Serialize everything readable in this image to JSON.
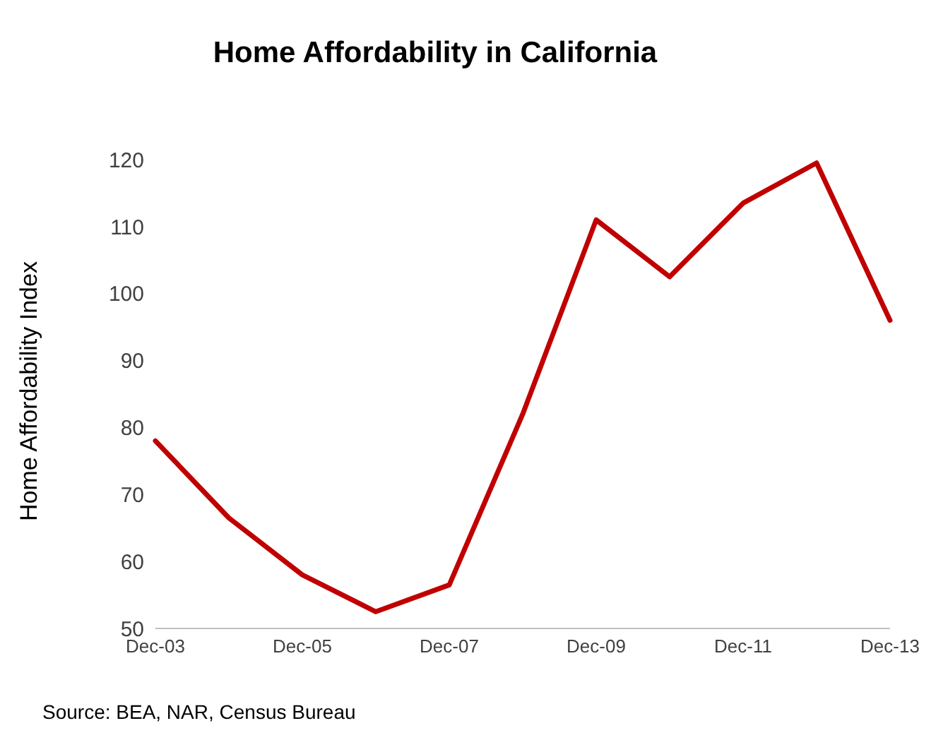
{
  "chart_data": {
    "type": "line",
    "title": "Home Affordability in California",
    "ylabel": "Home Affordability Index",
    "categories": [
      "Dec-03",
      null,
      "Dec-05",
      null,
      "Dec-07",
      null,
      "Dec-09",
      null,
      "Dec-11",
      null,
      "Dec-13"
    ],
    "series": [
      {
        "color": "#c00000",
        "values": [
          78,
          66.5,
          58,
          52.5,
          56.5,
          82,
          111,
          102.5,
          113.5,
          119.5,
          96
        ]
      }
    ],
    "ylim": [
      50,
      120
    ],
    "yticks": [
      50,
      60,
      70,
      80,
      90,
      100,
      110,
      120
    ],
    "grid": false,
    "legend": false,
    "marker": "none",
    "line_style": "solid",
    "annotations": [
      "Source: BEA, NAR, Census Bureau"
    ]
  }
}
